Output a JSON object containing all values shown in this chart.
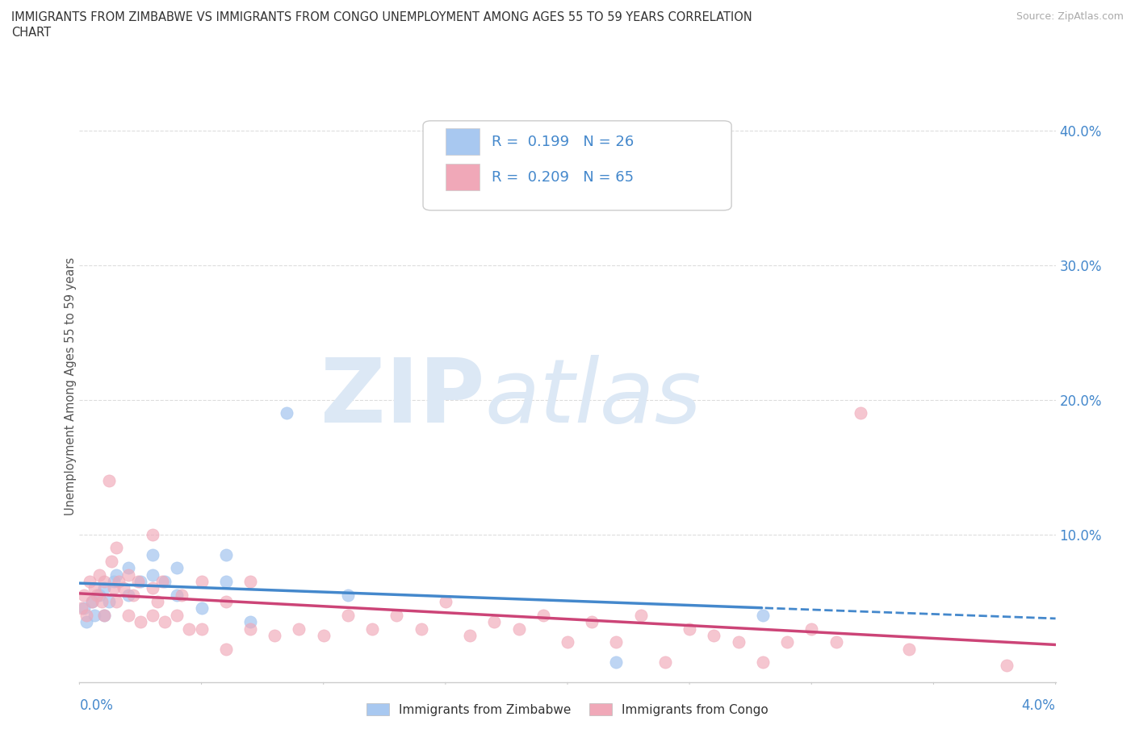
{
  "title_line1": "IMMIGRANTS FROM ZIMBABWE VS IMMIGRANTS FROM CONGO UNEMPLOYMENT AMONG AGES 55 TO 59 YEARS CORRELATION",
  "title_line2": "CHART",
  "source": "Source: ZipAtlas.com",
  "ylabel": "Unemployment Among Ages 55 to 59 years",
  "R_zim": 0.199,
  "N_zim": 26,
  "R_congo": 0.209,
  "N_congo": 65,
  "zim_color": "#a8c8f0",
  "congo_color": "#f0a8b8",
  "trendline_zim_color": "#4488cc",
  "trendline_congo_color": "#cc4477",
  "watermark_zip_color": "#dce8f5",
  "watermark_atlas_color": "#dce8f5",
  "background_color": "#ffffff",
  "grid_color": "#dddddd",
  "xlim": [
    0.0,
    0.04
  ],
  "ylim": [
    -0.01,
    0.43
  ],
  "ytick_vals": [
    0.1,
    0.2,
    0.3,
    0.4
  ],
  "ytick_labels": [
    "10.0%",
    "20.0%",
    "30.0%",
    "40.0%"
  ],
  "zim_x": [
    0.0002,
    0.0003,
    0.0005,
    0.0006,
    0.0008,
    0.001,
    0.001,
    0.0012,
    0.0014,
    0.0015,
    0.002,
    0.002,
    0.0025,
    0.003,
    0.003,
    0.0035,
    0.004,
    0.004,
    0.005,
    0.006,
    0.006,
    0.007,
    0.0085,
    0.011,
    0.022,
    0.028
  ],
  "zim_y": [
    0.045,
    0.035,
    0.05,
    0.04,
    0.055,
    0.04,
    0.06,
    0.05,
    0.065,
    0.07,
    0.055,
    0.075,
    0.065,
    0.07,
    0.085,
    0.065,
    0.055,
    0.075,
    0.045,
    0.065,
    0.085,
    0.035,
    0.19,
    0.055,
    0.005,
    0.04
  ],
  "congo_x": [
    0.0001,
    0.0002,
    0.0003,
    0.0004,
    0.0005,
    0.0006,
    0.0007,
    0.0008,
    0.0009,
    0.001,
    0.001,
    0.0012,
    0.0013,
    0.0014,
    0.0015,
    0.0015,
    0.0016,
    0.0018,
    0.002,
    0.002,
    0.0022,
    0.0024,
    0.0025,
    0.003,
    0.003,
    0.003,
    0.0032,
    0.0034,
    0.0035,
    0.004,
    0.0042,
    0.0045,
    0.005,
    0.005,
    0.006,
    0.006,
    0.007,
    0.007,
    0.008,
    0.009,
    0.01,
    0.011,
    0.012,
    0.013,
    0.014,
    0.015,
    0.016,
    0.017,
    0.018,
    0.019,
    0.02,
    0.021,
    0.022,
    0.023,
    0.024,
    0.025,
    0.026,
    0.027,
    0.028,
    0.029,
    0.03,
    0.031,
    0.032,
    0.034,
    0.038
  ],
  "congo_y": [
    0.045,
    0.055,
    0.04,
    0.065,
    0.05,
    0.06,
    0.055,
    0.07,
    0.05,
    0.04,
    0.065,
    0.14,
    0.08,
    0.06,
    0.05,
    0.09,
    0.065,
    0.06,
    0.04,
    0.07,
    0.055,
    0.065,
    0.035,
    0.04,
    0.06,
    0.1,
    0.05,
    0.065,
    0.035,
    0.04,
    0.055,
    0.03,
    0.065,
    0.03,
    0.015,
    0.05,
    0.03,
    0.065,
    0.025,
    0.03,
    0.025,
    0.04,
    0.03,
    0.04,
    0.03,
    0.05,
    0.025,
    0.035,
    0.03,
    0.04,
    0.02,
    0.035,
    0.02,
    0.04,
    0.005,
    0.03,
    0.025,
    0.02,
    0.005,
    0.02,
    0.03,
    0.02,
    0.19,
    0.015,
    0.003
  ]
}
